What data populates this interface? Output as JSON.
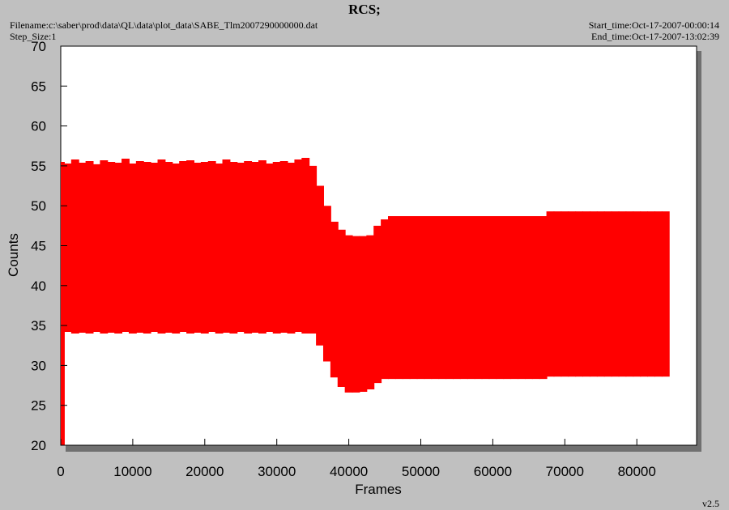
{
  "chart_data": {
    "type": "band",
    "title": "RCS;",
    "filename": "Filename:c:\\saber\\prod\\data\\QL\\data\\plot_data\\SABE_Tlm2007290000000.dat",
    "step_size": "Step_Size:1",
    "start_time": "Start_time:Oct-17-2007-00:00:14",
    "end_time": "End_time:Oct-17-2007-13:02:39",
    "version": "v2.5",
    "x_label": "Frames",
    "y_label": "Counts",
    "color": "#ff0000",
    "xlim": [
      0,
      88300
    ],
    "ylim": [
      20,
      70
    ],
    "xticks": [
      0,
      10000,
      20000,
      30000,
      40000,
      50000,
      60000,
      70000,
      80000
    ],
    "yticks": [
      20,
      25,
      30,
      35,
      40,
      45,
      50,
      55,
      60,
      65,
      70
    ],
    "grid": false,
    "x": [
      0,
      1000,
      2000,
      3000,
      4000,
      5000,
      6000,
      7000,
      8000,
      9000,
      10000,
      11000,
      12000,
      13000,
      14000,
      15000,
      16000,
      17000,
      18000,
      19000,
      20000,
      21000,
      22000,
      23000,
      24000,
      25000,
      26000,
      27000,
      28000,
      29000,
      30000,
      31000,
      32000,
      33000,
      34000,
      35000,
      36000,
      37000,
      38000,
      39000,
      40000,
      41000,
      42000,
      43000,
      44000,
      45000,
      46000,
      47000,
      48000,
      49000,
      50000,
      51000,
      52000,
      53000,
      54000,
      55000,
      56000,
      57000,
      58000,
      59000,
      60000,
      61000,
      62000,
      63000,
      64000,
      65000,
      66000,
      67000,
      68000,
      69000,
      70000,
      71000,
      72000,
      73000,
      74000,
      75000,
      76000,
      77000,
      78000,
      79000,
      80000,
      81000,
      82000,
      83000,
      84000
    ],
    "high": [
      55.5,
      55.3,
      55.8,
      55.4,
      55.6,
      55.2,
      55.7,
      55.5,
      55.4,
      55.9,
      55.3,
      55.6,
      55.5,
      55.4,
      55.8,
      55.5,
      55.3,
      55.6,
      55.7,
      55.4,
      55.5,
      55.6,
      55.3,
      55.8,
      55.5,
      55.4,
      55.6,
      55.5,
      55.7,
      55.3,
      55.5,
      55.6,
      55.4,
      55.8,
      56.0,
      55.0,
      52.5,
      50.0,
      48.0,
      47.0,
      46.3,
      46.2,
      46.2,
      46.3,
      47.5,
      48.3,
      48.7,
      48.7,
      48.7,
      48.7,
      48.7,
      48.7,
      48.7,
      48.7,
      48.7,
      48.7,
      48.7,
      48.7,
      48.7,
      48.7,
      48.7,
      48.7,
      48.7,
      48.7,
      48.7,
      48.7,
      48.7,
      48.7,
      49.3,
      49.3,
      49.3,
      49.3,
      49.3,
      49.3,
      49.3,
      49.3,
      49.3,
      49.3,
      49.3,
      49.3,
      49.3,
      49.3,
      49.3,
      49.3,
      49.3
    ],
    "low": [
      20,
      34.2,
      34.0,
      34.1,
      34.0,
      34.2,
      34.0,
      34.1,
      34.0,
      34.2,
      34.0,
      34.1,
      34.0,
      34.2,
      34.0,
      34.1,
      34.0,
      34.2,
      34.0,
      34.1,
      34.0,
      34.2,
      34.0,
      34.1,
      34.0,
      34.2,
      34.0,
      34.1,
      34.0,
      34.2,
      34.0,
      34.1,
      34.0,
      34.2,
      34.0,
      34.0,
      32.5,
      30.5,
      28.5,
      27.3,
      26.6,
      26.6,
      26.7,
      27.0,
      27.8,
      28.3,
      28.3,
      28.3,
      28.3,
      28.3,
      28.3,
      28.3,
      28.3,
      28.3,
      28.3,
      28.3,
      28.3,
      28.3,
      28.3,
      28.3,
      28.3,
      28.3,
      28.3,
      28.3,
      28.3,
      28.3,
      28.3,
      28.3,
      28.6,
      28.6,
      28.6,
      28.6,
      28.6,
      28.6,
      28.6,
      28.6,
      28.6,
      28.6,
      28.6,
      28.6,
      28.6,
      28.6,
      28.6,
      28.6,
      28.6
    ]
  }
}
